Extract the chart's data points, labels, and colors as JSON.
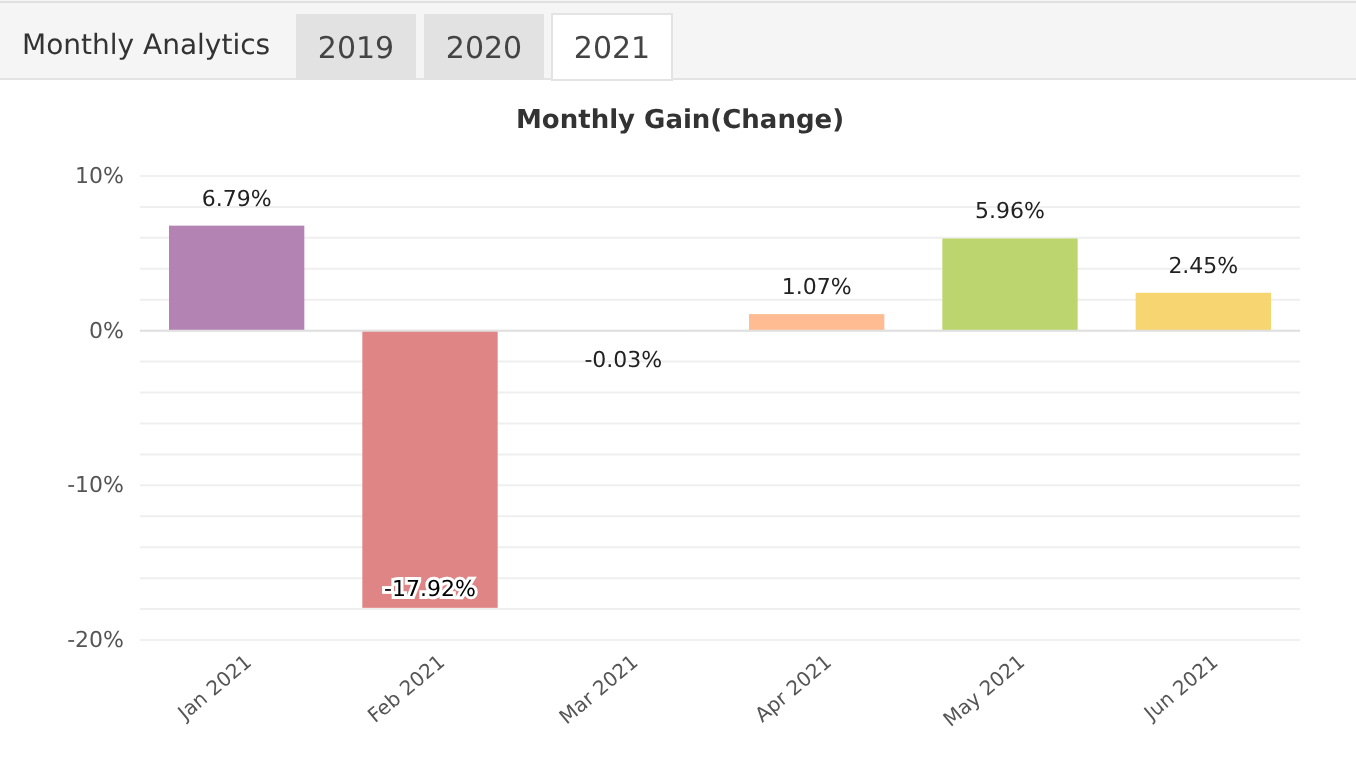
{
  "chart_data": {
    "type": "bar",
    "title": "Monthly Gain(Change)",
    "annotations": [
      "Monthly Analytics",
      "2019",
      "2020",
      "2021"
    ],
    "categories": [
      "Jan 2021",
      "Feb 2021",
      "Mar 2021",
      "Apr 2021",
      "May 2021",
      "Jun 2021"
    ],
    "values": [
      6.79,
      -17.92,
      -0.03,
      1.07,
      5.96,
      2.45
    ],
    "colors": [
      "#b384b3",
      "#e08585",
      "#8bc5e8",
      "#ffbb92",
      "#bcd56e",
      "#f7d571"
    ],
    "value_labels": [
      "6.79%",
      "-17.92%",
      "-0.03%",
      "1.07%",
      "5.96%",
      "2.45%"
    ],
    "ylim": [
      -20,
      10
    ],
    "yticks": [
      {
        "value": -20,
        "label": "-20%"
      },
      {
        "value": -18,
        "label": null
      },
      {
        "value": -16,
        "label": null
      },
      {
        "value": -14,
        "label": null
      },
      {
        "value": -12,
        "label": null
      },
      {
        "value": -10,
        "label": "-10%"
      },
      {
        "value": -8,
        "label": null
      },
      {
        "value": -6,
        "label": null
      },
      {
        "value": -4,
        "label": null
      },
      {
        "value": -2,
        "label": null
      },
      {
        "value": 0,
        "label": "0%"
      },
      {
        "value": 2,
        "label": null
      },
      {
        "value": 4,
        "label": null
      },
      {
        "value": 6,
        "label": null
      },
      {
        "value": 8,
        "label": null
      },
      {
        "value": 10,
        "label": "10%"
      }
    ],
    "grid": "y"
  }
}
